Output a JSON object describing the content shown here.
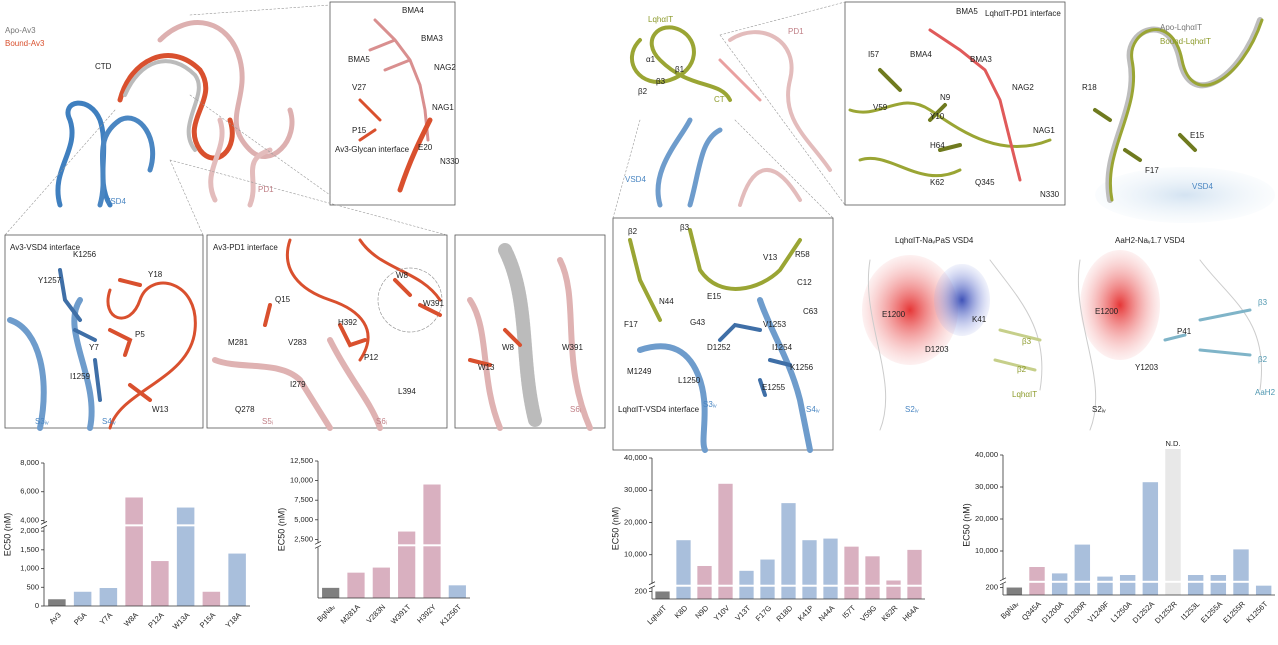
{
  "panels": [
    {
      "labels": [
        "Apo-Av3",
        "Bound-Av3",
        "CTD",
        "VSD4",
        "PD1"
      ]
    },
    {
      "labels": [
        "BMA4",
        "BMA5",
        "BMA3",
        "NAG2",
        "V27",
        "NAG1",
        "P15",
        "Av3-Glycan interface",
        "E20",
        "N330"
      ]
    },
    {
      "labels": [
        "Av3-VSD4 interface",
        "K1256",
        "Y18",
        "Y1257",
        "Y7",
        "P5",
        "I1259",
        "W13",
        "S3ᵢᵥ",
        "S4ᵢᵥ"
      ]
    },
    {
      "labels": [
        "Av3-PD1 interface",
        "W8",
        "W391",
        "Q15",
        "H392",
        "M281",
        "V283",
        "P12",
        "I279",
        "L394",
        "Q278",
        "S5ᵢ",
        "S6ᵢ"
      ]
    },
    {
      "labels": [
        "W8",
        "W391",
        "W13",
        "S6ᵢ"
      ]
    },
    {
      "labels": [
        "LqhαIT",
        "PD1",
        "β1",
        "β2",
        "β3",
        "α1",
        "CT",
        "VSD4"
      ]
    },
    {
      "labels": [
        "LqhαIT-PD1 interface",
        "BMA5",
        "BMA4",
        "BMA3",
        "I57",
        "N9",
        "NAG2",
        "V59",
        "Y10",
        "NAG1",
        "H64",
        "K62",
        "Q345",
        "N330"
      ]
    },
    {
      "labels": [
        "Apo-LqhαIT",
        "Bound-LqhαIT",
        "R18",
        "E15",
        "F17",
        "VSD4"
      ]
    },
    {
      "labels": [
        "β2",
        "β3",
        "V13",
        "R58",
        "C12",
        "N44",
        "E15",
        "G43",
        "F17",
        "C63",
        "V1253",
        "D1252",
        "I1254",
        "M1249",
        "L1250",
        "K1256",
        "E1255",
        "LqhαIT-VSD4 interface",
        "S3ᵢᵥ",
        "S4ᵢᵥ"
      ]
    },
    {
      "labels": [
        "LqhαIT-NaᵥPaS VSD4",
        "E1200",
        "K41",
        "D1203",
        "β3",
        "β2",
        "S2ᵢᵥ",
        "LqhαIT"
      ]
    },
    {
      "labels": [
        "AaH2-Naᵥ1.7 VSD4",
        "E1200",
        "β3",
        "P41",
        "β2",
        "Y1203",
        "AaH2",
        "S2ᵢᵥ"
      ]
    }
  ],
  "chart_data": [
    {
      "type": "bar",
      "y_label": "EC50 (nM)",
      "categories": [
        "Av3",
        "P5A",
        "Y7A",
        "W8A",
        "P12A",
        "W13A",
        "P15A",
        "Y18A"
      ],
      "values": [
        180,
        380,
        480,
        5600,
        1200,
        4900,
        380,
        1400
      ],
      "colors": [
        "#7f7f7f",
        "#a9bfdc",
        "#a9bfdc",
        "#d9b0c0",
        "#d9b0c0",
        "#a9bfdc",
        "#d9b0c0",
        "#a9bfdc"
      ],
      "ylim": [
        0,
        8000
      ],
      "ybreak": [
        2100,
        3800
      ],
      "yticks": [
        0,
        500,
        {
          "value": 1000,
          "label": "1,000"
        },
        {
          "value": 1500,
          "label": "1,500"
        },
        {
          "value": 2000,
          "label": "2,000"
        },
        {
          "value": 4000,
          "label": "4,000"
        },
        {
          "value": 6000,
          "label": "6,000"
        },
        {
          "value": 8000,
          "label": "8,000"
        }
      ]
    },
    {
      "type": "bar",
      "y_label": "EC50 (nM)",
      "categories": [
        "BgNaᵥ",
        "M281A",
        "V283N",
        "W391T",
        "H392Y",
        "K1256T"
      ],
      "values": [
        200,
        500,
        600,
        3500,
        9500,
        250
      ],
      "colors": [
        "#7f7f7f",
        "#d9b0c0",
        "#d9b0c0",
        "#d9b0c0",
        "#d9b0c0",
        "#a9bfdc"
      ],
      "ylim": [
        0,
        12500
      ],
      "ybreak": [
        1000,
        2000
      ],
      "yticks": [
        {
          "value": 2500,
          "label": "2,500"
        },
        {
          "value": 5000,
          "label": "5,000"
        },
        {
          "value": 7500,
          "label": "7,500"
        },
        {
          "value": 10000,
          "label": "10,000"
        },
        {
          "value": 12500,
          "label": "12,500"
        }
      ]
    },
    {
      "type": "bar",
      "y_label": "EC50 (nM)",
      "categories": [
        "LqhαIT",
        "K8D",
        "N9D",
        "Y10V",
        "V13T",
        "F17G",
        "R18D",
        "K41P",
        "N44A",
        "I57T",
        "V59G",
        "K62R",
        "H64A"
      ],
      "values": [
        200,
        14500,
        6500,
        32000,
        5000,
        8500,
        26000,
        14500,
        15000,
        12500,
        9500,
        2000,
        11500
      ],
      "colors": [
        "#7f7f7f",
        "#a9bfdc",
        "#d9b0c0",
        "#d9b0c0",
        "#a9bfdc",
        "#a9bfdc",
        "#a9bfdc",
        "#a9bfdc",
        "#a9bfdc",
        "#d9b0c0",
        "#d9b0c0",
        "#d9b0c0",
        "#d9b0c0"
      ],
      "ylim": [
        0,
        40000
      ],
      "ybreak": [
        300,
        1000
      ],
      "yticks": [
        200,
        {
          "value": 10000,
          "label": "10,000"
        },
        {
          "value": 20000,
          "label": "20,000"
        },
        {
          "value": 30000,
          "label": "30,000"
        },
        {
          "value": 40000,
          "label": "40,000"
        }
      ]
    },
    {
      "type": "bar",
      "y_label": "EC50 (nM)",
      "categories": [
        "BgNaᵥ",
        "Q345A",
        "D1200A",
        "D1200R",
        "V1249F",
        "L1250A",
        "D1252A",
        "D1252R",
        "I1253L",
        "E1255A",
        "E1255R",
        "K1256T"
      ],
      "values": [
        200,
        5000,
        3000,
        12000,
        2000,
        2500,
        31500,
        null,
        2500,
        2500,
        10500,
        250
      ],
      "colors": [
        "#7f7f7f",
        "#d9b0c0",
        "#a9bfdc",
        "#a9bfdc",
        "#a9bfdc",
        "#a9bfdc",
        "#a9bfdc",
        "#e8e8e8",
        "#a9bfdc",
        "#a9bfdc",
        "#a9bfdc",
        "#a9bfdc"
      ],
      "annotation": {
        "text": "N.D.",
        "category": "D1252R"
      },
      "ylim": [
        0,
        40000
      ],
      "ybreak": [
        300,
        1000
      ],
      "yticks": [
        200,
        {
          "value": 10000,
          "label": "10,000"
        },
        {
          "value": 20000,
          "label": "20,000"
        },
        {
          "value": 30000,
          "label": "30,000"
        },
        {
          "value": 40000,
          "label": "40,000"
        }
      ]
    }
  ]
}
